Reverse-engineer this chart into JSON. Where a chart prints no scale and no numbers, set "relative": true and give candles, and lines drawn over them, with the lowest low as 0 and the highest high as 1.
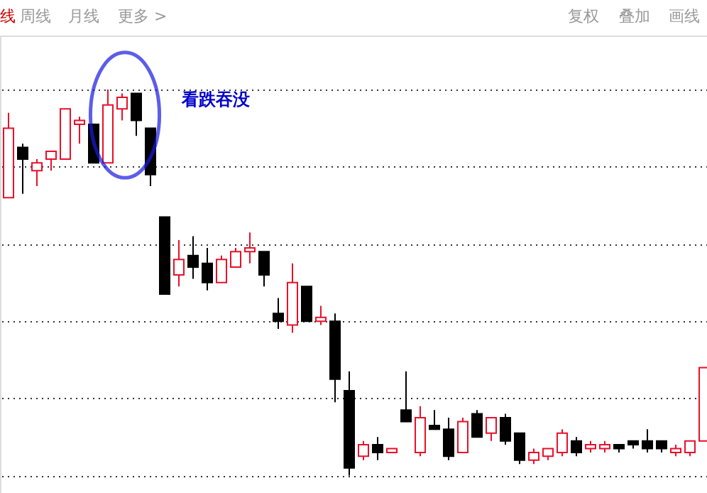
{
  "chart_data": {
    "type": "candlestick",
    "relative": true,
    "grid": "y",
    "annotations": [
      "看跌吞没",
      "线",
      "周线",
      "月线",
      "更多 >",
      "复权",
      "叠加",
      "画线"
    ],
    "categories": [
      null,
      null,
      null,
      null,
      null,
      null,
      null,
      null,
      null,
      null,
      null,
      null,
      null,
      null,
      null,
      null,
      null,
      null,
      null,
      null,
      null,
      null,
      null,
      null,
      null,
      null,
      null,
      null,
      null,
      null,
      null,
      null,
      null,
      null,
      null,
      null,
      null,
      null,
      null,
      null,
      null,
      null,
      null,
      null,
      null,
      null,
      null,
      null,
      null,
      null
    ],
    "ohlc": [
      [
        0.72,
        0.94,
        0.72,
        0.9
      ],
      [
        0.85,
        0.86,
        0.73,
        0.82
      ],
      [
        0.79,
        0.82,
        0.75,
        0.81
      ],
      [
        0.82,
        0.84,
        0.79,
        0.84
      ],
      [
        0.82,
        0.95,
        0.82,
        0.95
      ],
      [
        0.91,
        0.93,
        0.86,
        0.92
      ],
      [
        0.91,
        0.91,
        0.81,
        0.81
      ],
      [
        0.81,
        1.0,
        0.81,
        0.96
      ],
      [
        0.95,
        0.99,
        0.92,
        0.98
      ],
      [
        0.99,
        0.99,
        0.88,
        0.92
      ],
      [
        0.9,
        0.9,
        0.75,
        0.78
      ],
      [
        0.67,
        0.67,
        0.47,
        0.47
      ],
      [
        0.52,
        0.61,
        0.49,
        0.56
      ],
      [
        0.57,
        0.62,
        0.51,
        0.54
      ],
      [
        0.55,
        0.59,
        0.48,
        0.5
      ],
      [
        0.5,
        0.57,
        0.5,
        0.56
      ],
      [
        0.54,
        0.59,
        0.54,
        0.58
      ],
      [
        0.58,
        0.63,
        0.55,
        0.59
      ],
      [
        0.58,
        0.58,
        0.49,
        0.52
      ],
      [
        0.42,
        0.46,
        0.38,
        0.4
      ],
      [
        0.39,
        0.55,
        0.37,
        0.5
      ],
      [
        0.49,
        0.49,
        0.4,
        0.4
      ],
      [
        0.4,
        0.44,
        0.39,
        0.41
      ],
      [
        0.4,
        0.42,
        0.19,
        0.25
      ],
      [
        0.22,
        0.27,
        0.0,
        0.02
      ],
      [
        0.05,
        0.09,
        0.04,
        0.08
      ],
      [
        0.08,
        0.1,
        0.04,
        0.06
      ],
      [
        0.06,
        0.07,
        0.06,
        0.07
      ],
      [
        0.17,
        0.27,
        0.14,
        0.14
      ],
      [
        0.06,
        0.18,
        0.05,
        0.15
      ],
      [
        0.13,
        0.17,
        0.12,
        0.12
      ],
      [
        0.12,
        0.15,
        0.04,
        0.05
      ],
      [
        0.06,
        0.15,
        0.06,
        0.14
      ],
      [
        0.16,
        0.17,
        0.1,
        0.1
      ],
      [
        0.11,
        0.15,
        0.09,
        0.15
      ],
      [
        0.15,
        0.16,
        0.08,
        0.09
      ],
      [
        0.11,
        0.11,
        0.03,
        0.04
      ],
      [
        0.04,
        0.07,
        0.03,
        0.06
      ],
      [
        0.05,
        0.07,
        0.04,
        0.07
      ],
      [
        0.06,
        0.12,
        0.05,
        0.11
      ],
      [
        0.09,
        0.1,
        0.05,
        0.06
      ],
      [
        0.07,
        0.09,
        0.06,
        0.08
      ],
      [
        0.07,
        0.09,
        0.06,
        0.08
      ],
      [
        0.08,
        0.08,
        0.06,
        0.07
      ],
      [
        0.09,
        0.09,
        0.07,
        0.08
      ],
      [
        0.09,
        0.12,
        0.06,
        0.07
      ],
      [
        0.09,
        0.09,
        0.06,
        0.07
      ],
      [
        0.06,
        0.08,
        0.05,
        0.07
      ],
      [
        0.06,
        0.09,
        0.05,
        0.09
      ],
      [
        0.09,
        0.28,
        0.09,
        0.28
      ]
    ],
    "colors": [
      "#e8102a",
      "#000000",
      "#e8102a",
      "#e8102a",
      "#e8102a",
      "#e8102a",
      "#000000",
      "#e8102a",
      "#e8102a",
      "#000000",
      "#000000",
      "#000000",
      "#e8102a",
      "#000000",
      "#000000",
      "#e8102a",
      "#e8102a",
      "#e8102a",
      "#000000",
      "#000000",
      "#e8102a",
      "#000000",
      "#e8102a",
      "#000000",
      "#000000",
      "#e8102a",
      "#000000",
      "#e8102a",
      "#000000",
      "#e8102a",
      "#000000",
      "#000000",
      "#e8102a",
      "#000000",
      "#e8102a",
      "#000000",
      "#000000",
      "#e8102a",
      "#e8102a",
      "#e8102a",
      "#000000",
      "#e8102a",
      "#e8102a",
      "#000000",
      "#000000",
      "#000000",
      "#000000",
      "#e8102a",
      "#e8102a",
      "#e8102a"
    ]
  }
}
